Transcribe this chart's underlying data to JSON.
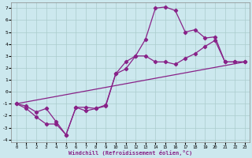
{
  "xlabel": "Windchill (Refroidissement éolien,°C)",
  "xlim": [
    -0.5,
    23.5
  ],
  "ylim": [
    -4.2,
    7.5
  ],
  "xticks": [
    0,
    1,
    2,
    3,
    4,
    5,
    6,
    7,
    8,
    9,
    10,
    11,
    12,
    13,
    14,
    15,
    16,
    17,
    18,
    19,
    20,
    21,
    22,
    23
  ],
  "yticks": [
    -4,
    -3,
    -2,
    -1,
    0,
    1,
    2,
    3,
    4,
    5,
    6,
    7
  ],
  "bg_color": "#cce8ee",
  "line_color": "#882288",
  "grid_color": "#aacccc",
  "line1_x": [
    0,
    1,
    2,
    3,
    4,
    5,
    6,
    7,
    8,
    9,
    10,
    11,
    12,
    13,
    14,
    15,
    16,
    17,
    18,
    19,
    20,
    21,
    22,
    23
  ],
  "line1_y": [
    -1,
    -1.4,
    -2.1,
    -2.7,
    -2.7,
    -3.6,
    -1.3,
    -1.3,
    -1.4,
    -1.1,
    1.5,
    1.9,
    3.0,
    4.4,
    7.0,
    7.1,
    6.8,
    5.0,
    5.2,
    4.5,
    4.6,
    2.5,
    2.5,
    2.5
  ],
  "line2_x": [
    0,
    1,
    2,
    3,
    4,
    5,
    6,
    7,
    8,
    9,
    10,
    11,
    12,
    13,
    14,
    15,
    16,
    17,
    18,
    19,
    20,
    21,
    22,
    23
  ],
  "line2_y": [
    -1,
    -1.2,
    -1.7,
    -1.4,
    -2.5,
    -3.6,
    -1.3,
    -1.6,
    -1.4,
    -1.2,
    1.5,
    2.5,
    3.0,
    3.0,
    2.5,
    2.5,
    2.3,
    2.8,
    3.2,
    3.8,
    4.3,
    2.5,
    2.5,
    2.5
  ],
  "line3_x": [
    0,
    23
  ],
  "line3_y": [
    -1.0,
    2.5
  ],
  "marker": "D",
  "markersize": 2.2,
  "linewidth": 0.9
}
